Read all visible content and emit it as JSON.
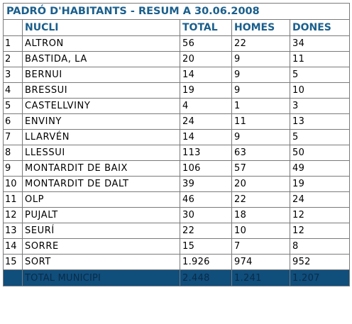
{
  "title": "PADRÓ D'HABITANTS - RESUM A  30.06.2008",
  "headers": {
    "idx": "",
    "nucli": "NUCLI",
    "total": "TOTAL",
    "homes": "HOMES",
    "dones": "DONES"
  },
  "rows": [
    {
      "idx": "1",
      "nucli": "ALTRON",
      "total": "56",
      "homes": "22",
      "dones": "34"
    },
    {
      "idx": "2",
      "nucli": "BASTIDA, LA",
      "total": "20",
      "homes": "9",
      "dones": "11"
    },
    {
      "idx": "3",
      "nucli": "BERNUI",
      "total": "14",
      "homes": "9",
      "dones": "5"
    },
    {
      "idx": "4",
      "nucli": "BRESSUI",
      "total": "19",
      "homes": "9",
      "dones": "10"
    },
    {
      "idx": "5",
      "nucli": "CASTELLVINY",
      "total": "4",
      "homes": "1",
      "dones": "3"
    },
    {
      "idx": "6",
      "nucli": "ENVINY",
      "total": "24",
      "homes": "11",
      "dones": "13"
    },
    {
      "idx": "7",
      "nucli": "LLARVÉN",
      "total": "14",
      "homes": "9",
      "dones": "5"
    },
    {
      "idx": "8",
      "nucli": "LLESSUI",
      "total": "113",
      "homes": "63",
      "dones": "50"
    },
    {
      "idx": "9",
      "nucli": "MONTARDIT DE BAIX",
      "total": "106",
      "homes": "57",
      "dones": "49"
    },
    {
      "idx": "10",
      "nucli": "MONTARDIT DE DALT",
      "total": "39",
      "homes": "20",
      "dones": "19"
    },
    {
      "idx": "11",
      "nucli": "OLP",
      "total": "46",
      "homes": "22",
      "dones": "24"
    },
    {
      "idx": "12",
      "nucli": "PUJALT",
      "total": "30",
      "homes": "18",
      "dones": "12"
    },
    {
      "idx": "13",
      "nucli": "SEURÍ",
      "total": "22",
      "homes": "10",
      "dones": "12"
    },
    {
      "idx": "14",
      "nucli": "SORRE",
      "total": "15",
      "homes": "7",
      "dones": "8"
    },
    {
      "idx": "15",
      "nucli": "SORT",
      "total": "1.926",
      "homes": "974",
      "dones": "952"
    }
  ],
  "total_row": {
    "idx": "",
    "nucli": "TOTAL MUNICIPI",
    "total": "2.448",
    "homes": "1.241",
    "dones": "1.207"
  },
  "colors": {
    "heading": "#1a5f8c",
    "total_bg": "#104e7c",
    "total_text": "#0a2c48",
    "border": "#7a7a7a"
  }
}
